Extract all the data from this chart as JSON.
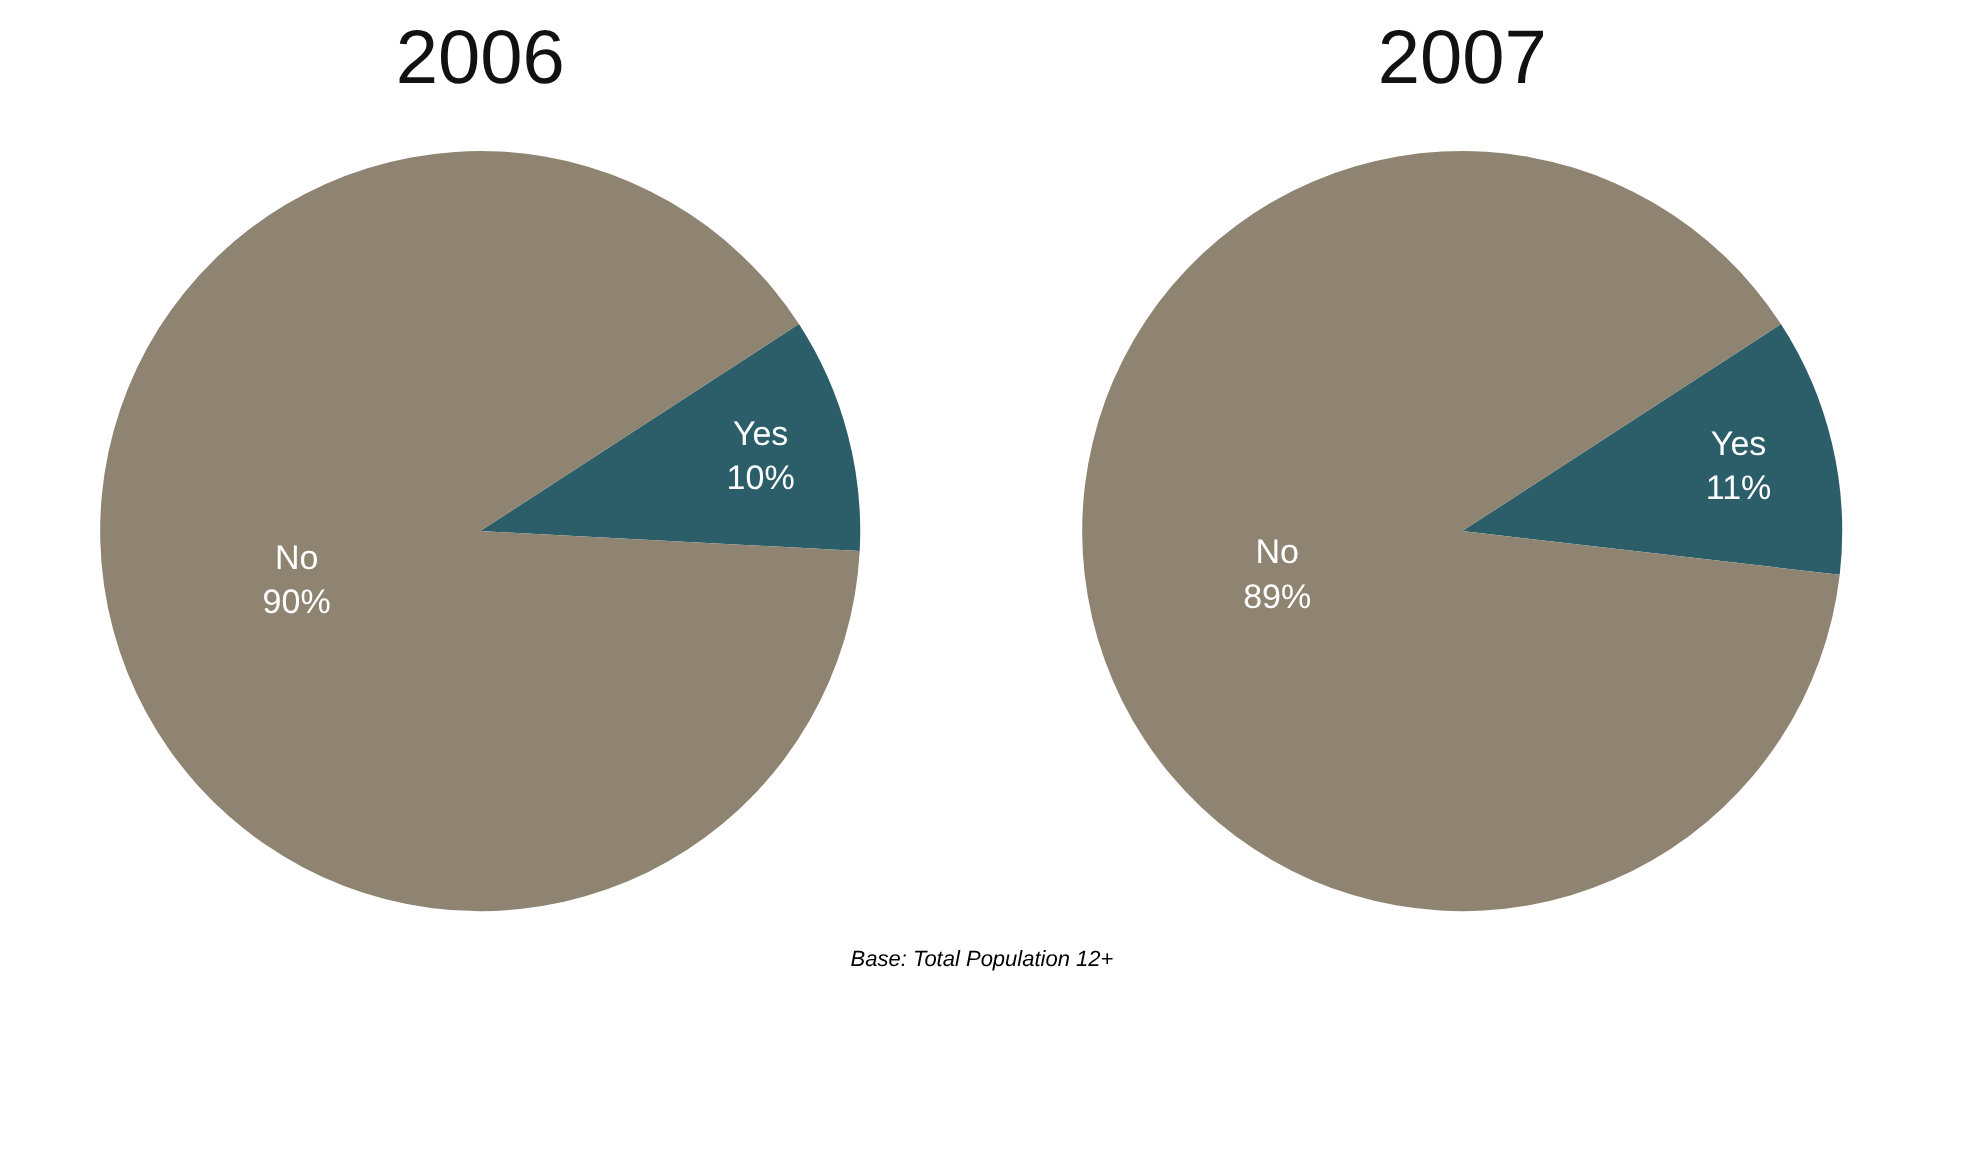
{
  "chart_data": [
    {
      "type": "pie",
      "title": "2006",
      "categories": [
        "Yes",
        "No"
      ],
      "values": [
        10,
        90
      ],
      "value_labels": [
        "10%",
        "90%"
      ],
      "colors": [
        "#2b5e68",
        "#8f8472"
      ],
      "annotations": [
        "Base: Total Population 12+"
      ]
    },
    {
      "type": "pie",
      "title": "2007",
      "categories": [
        "Yes",
        "No"
      ],
      "values": [
        11,
        89
      ],
      "value_labels": [
        "11%",
        "89%"
      ],
      "colors": [
        "#2b5e68",
        "#8f8472"
      ]
    }
  ]
}
